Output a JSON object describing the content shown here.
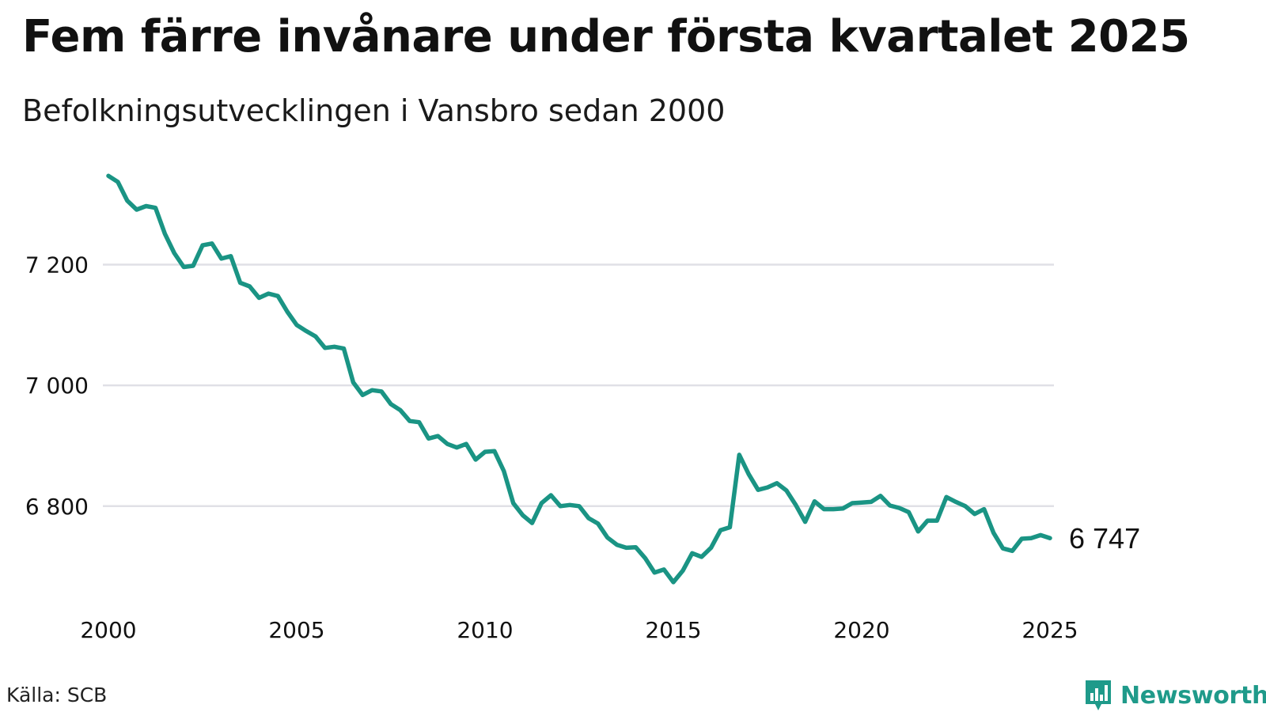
{
  "chart_data": {
    "type": "line",
    "title": "Fem färre invånare under första kvartalet 2025",
    "subtitle": "Befolkningsutvecklingen i Vansbro sedan 2000",
    "xlabel": "",
    "ylabel": "",
    "x_ticks": [
      "2000",
      "2005",
      "2010",
      "2015",
      "2020",
      "2025"
    ],
    "y_ticks": [
      "6 800",
      "7 000",
      "7 200"
    ],
    "y_tick_values": [
      6800,
      7000,
      7200
    ],
    "xlim": [
      2000,
      2025.0
    ],
    "ylim": [
      6670,
      7350
    ],
    "grid": "horizontal",
    "line_color": "#1a9484",
    "end_label": "6 747",
    "x": [
      2000.0,
      2000.25,
      2000.5,
      2000.75,
      2001.0,
      2001.25,
      2001.5,
      2001.75,
      2002.0,
      2002.25,
      2002.5,
      2002.75,
      2003.0,
      2003.25,
      2003.5,
      2003.75,
      2004.0,
      2004.25,
      2004.5,
      2004.75,
      2005.0,
      2005.25,
      2005.5,
      2005.75,
      2006.0,
      2006.25,
      2006.5,
      2006.75,
      2007.0,
      2007.25,
      2007.5,
      2007.75,
      2008.0,
      2008.25,
      2008.5,
      2008.75,
      2009.0,
      2009.25,
      2009.5,
      2009.75,
      2010.0,
      2010.25,
      2010.5,
      2010.75,
      2011.0,
      2011.25,
      2011.5,
      2011.75,
      2012.0,
      2012.25,
      2012.5,
      2012.75,
      2013.0,
      2013.25,
      2013.5,
      2013.75,
      2014.0,
      2014.25,
      2014.5,
      2014.75,
      2015.0,
      2015.25,
      2015.5,
      2015.75,
      2016.0,
      2016.25,
      2016.5,
      2016.75,
      2017.0,
      2017.25,
      2017.5,
      2017.75,
      2018.0,
      2018.25,
      2018.5,
      2018.75,
      2019.0,
      2019.25,
      2019.5,
      2019.75,
      2020.0,
      2020.25,
      2020.5,
      2020.75,
      2021.0,
      2021.25,
      2021.5,
      2021.75,
      2022.0,
      2022.25,
      2022.5,
      2022.75,
      2023.0,
      2023.25,
      2023.5,
      2023.75,
      2024.0,
      2024.25,
      2024.5,
      2024.75,
      2025.0
    ],
    "series": [
      {
        "values": [
          7347,
          7337,
          7306,
          7291,
          7297,
          7294,
          7251,
          7219,
          7196,
          7198,
          7232,
          7235,
          7210,
          7214,
          7170,
          7164,
          7145,
          7152,
          7148,
          7122,
          7100,
          7090,
          7081,
          7062,
          7064,
          7061,
          7005,
          6984,
          6992,
          6990,
          6969,
          6959,
          6941,
          6939,
          6912,
          6916,
          6903,
          6897,
          6903,
          6877,
          6890,
          6891,
          6858,
          6805,
          6785,
          6772,
          6805,
          6818,
          6800,
          6802,
          6800,
          6780,
          6771,
          6748,
          6736,
          6731,
          6732,
          6714,
          6690,
          6695,
          6674,
          6693,
          6722,
          6716,
          6731,
          6760,
          6765,
          6885,
          6853,
          6827,
          6831,
          6838,
          6826,
          6802,
          6774,
          6808,
          6795,
          6795,
          6796,
          6805,
          6806,
          6807,
          6817,
          6801,
          6797,
          6790,
          6758,
          6776,
          6776,
          6815,
          6807,
          6800,
          6787,
          6795,
          6756,
          6730,
          6726,
          6746,
          6747,
          6752,
          6747
        ]
      }
    ]
  },
  "source": "Källa: SCB",
  "brand": "Newsworthy"
}
